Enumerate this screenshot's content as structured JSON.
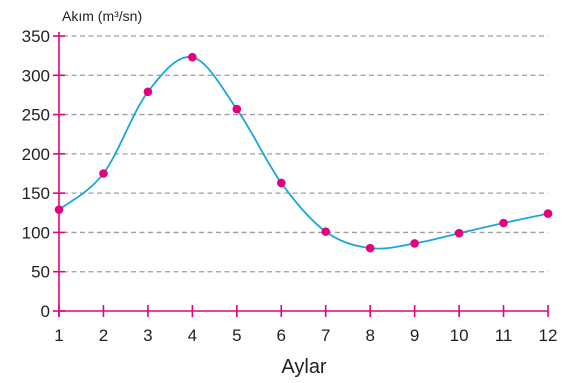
{
  "chart_data": {
    "type": "line",
    "x": [
      1,
      2,
      3,
      4,
      5,
      6,
      7,
      8,
      9,
      10,
      11,
      12
    ],
    "series": [
      {
        "values": [
          129,
          175,
          279,
          323,
          257,
          163,
          101,
          80,
          86,
          99,
          112,
          124
        ]
      }
    ],
    "xlabel": "Aylar",
    "ylabel": "Akım (m³/sn)",
    "xlim": [
      1,
      12
    ],
    "ylim": [
      0,
      350
    ],
    "yticks": [
      0,
      50,
      100,
      150,
      200,
      250,
      300,
      350
    ],
    "xticks": [
      1,
      2,
      3,
      4,
      5,
      6,
      7,
      8,
      9,
      10,
      11,
      12
    ],
    "grid": "horizontal-dashed",
    "smooth": true,
    "colors": {
      "line": "#1ba6dd",
      "points": "#e6007e",
      "axis": "#e6007e",
      "grid": "#9e9e9e",
      "text": "#231f20"
    }
  }
}
